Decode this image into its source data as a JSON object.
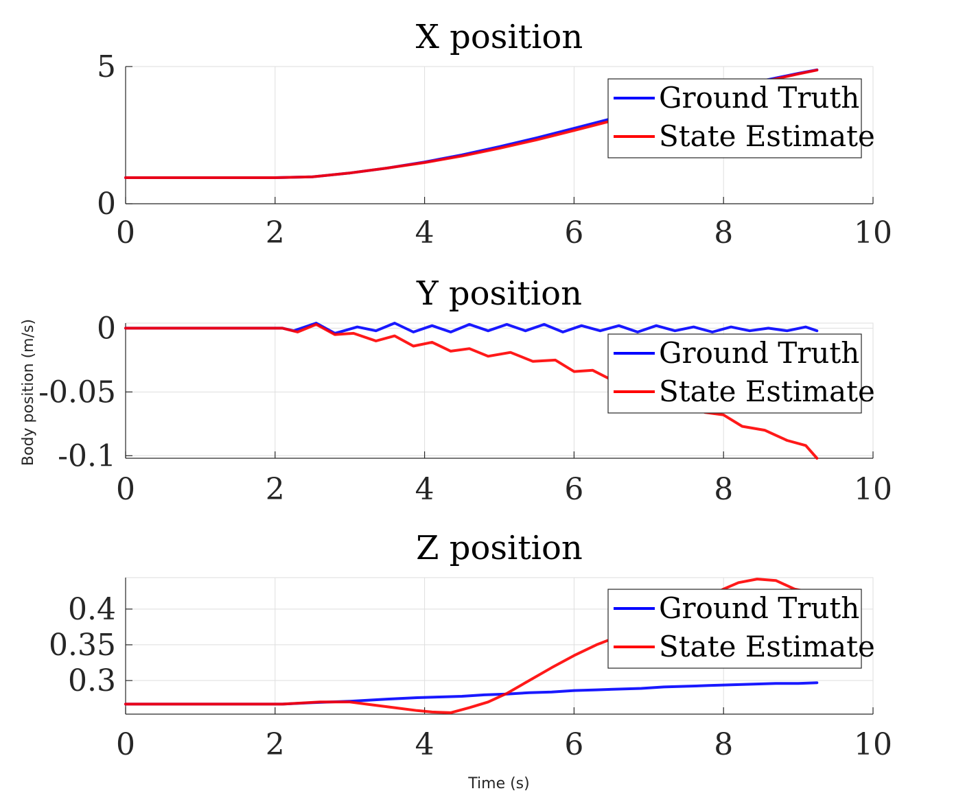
{
  "figure": {
    "xlabel": "Time (s)",
    "ylabel": "Body position (m/s)"
  },
  "legend": {
    "entries": [
      "Ground Truth",
      "State Estimate"
    ]
  },
  "colors": {
    "ground_truth": "#0000ff",
    "state_estimate": "#ff0000"
  },
  "chart_data": [
    {
      "type": "line",
      "title": "X position",
      "xlim": [
        0,
        10
      ],
      "ylim": [
        0,
        5
      ],
      "xticks": [
        0,
        2,
        4,
        6,
        8,
        10
      ],
      "yticks": [
        0,
        5
      ],
      "ytick_labels": [
        "0",
        "5"
      ],
      "grid": true,
      "legend_position": "top-right",
      "series": [
        {
          "name": "Ground Truth",
          "x": [
            0,
            1,
            2,
            2.5,
            3,
            3.5,
            4,
            4.5,
            5,
            5.5,
            6,
            6.5,
            7,
            7.5,
            8,
            8.5,
            9,
            9.25
          ],
          "y": [
            0.95,
            0.95,
            0.95,
            0.98,
            1.12,
            1.3,
            1.52,
            1.78,
            2.08,
            2.4,
            2.75,
            3.1,
            3.45,
            3.8,
            4.15,
            4.47,
            4.75,
            4.88
          ]
        },
        {
          "name": "State Estimate",
          "x": [
            0,
            1,
            2,
            2.5,
            3,
            3.5,
            4,
            4.5,
            5,
            5.5,
            6,
            6.5,
            7,
            7.5,
            8,
            8.5,
            9,
            9.25
          ],
          "y": [
            0.95,
            0.95,
            0.95,
            0.98,
            1.12,
            1.3,
            1.5,
            1.74,
            2.02,
            2.33,
            2.67,
            3.02,
            3.38,
            3.74,
            4.1,
            4.43,
            4.73,
            4.87
          ]
        }
      ]
    },
    {
      "type": "line",
      "title": "Y position",
      "xlim": [
        0,
        10
      ],
      "ylim": [
        -0.102,
        0.004
      ],
      "xticks": [
        0,
        2,
        4,
        6,
        8,
        10
      ],
      "yticks": [
        0,
        -0.05,
        -0.1
      ],
      "ytick_labels": [
        "0",
        "-0.05",
        "-0.1"
      ],
      "grid": true,
      "legend_position": "top-right",
      "series": [
        {
          "name": "Ground Truth",
          "x": [
            0,
            2.1,
            2.25,
            2.55,
            2.8,
            3.1,
            3.35,
            3.6,
            3.85,
            4.1,
            4.35,
            4.6,
            4.85,
            5.1,
            5.35,
            5.6,
            5.85,
            6.1,
            6.35,
            6.6,
            6.85,
            7.1,
            7.35,
            7.6,
            7.85,
            8.1,
            8.35,
            8.6,
            8.85,
            9.1,
            9.25
          ],
          "y": [
            0,
            0,
            -0.002,
            0.004,
            -0.004,
            0.001,
            -0.002,
            0.004,
            -0.003,
            0.002,
            -0.003,
            0.003,
            -0.002,
            0.003,
            -0.002,
            0.003,
            -0.003,
            0.002,
            -0.002,
            0.002,
            -0.003,
            0.002,
            -0.002,
            0.001,
            -0.003,
            0.001,
            -0.002,
            0,
            -0.002,
            0.001,
            -0.002
          ]
        },
        {
          "name": "State Estimate",
          "x": [
            0,
            2.1,
            2.3,
            2.55,
            2.8,
            3.05,
            3.35,
            3.6,
            3.85,
            4.1,
            4.35,
            4.6,
            4.85,
            5.15,
            5.45,
            5.75,
            6.0,
            6.25,
            6.55,
            6.85,
            7.15,
            7.45,
            7.75,
            8.0,
            8.25,
            8.55,
            8.85,
            9.1,
            9.25
          ],
          "y": [
            0,
            0,
            -0.003,
            0.003,
            -0.005,
            -0.004,
            -0.01,
            -0.006,
            -0.014,
            -0.011,
            -0.018,
            -0.016,
            -0.022,
            -0.019,
            -0.026,
            -0.025,
            -0.034,
            -0.033,
            -0.042,
            -0.044,
            -0.052,
            -0.056,
            -0.066,
            -0.068,
            -0.077,
            -0.08,
            -0.088,
            -0.092,
            -0.102
          ]
        }
      ]
    },
    {
      "type": "line",
      "title": "Z position",
      "xlim": [
        0,
        10
      ],
      "ylim": [
        0.253,
        0.444
      ],
      "xticks": [
        0,
        2,
        4,
        6,
        8,
        10
      ],
      "yticks": [
        0.3,
        0.35,
        0.4
      ],
      "ytick_labels": [
        "0.3",
        "0.35",
        "0.4"
      ],
      "grid": true,
      "legend_position": "top-right",
      "series": [
        {
          "name": "Ground Truth",
          "x": [
            0,
            2.1,
            2.5,
            3.0,
            3.5,
            3.9,
            4.2,
            4.5,
            4.8,
            5.1,
            5.4,
            5.7,
            6.0,
            6.3,
            6.6,
            6.9,
            7.2,
            7.5,
            7.8,
            8.1,
            8.4,
            8.7,
            9.0,
            9.25
          ],
          "y": [
            0.267,
            0.267,
            0.269,
            0.271,
            0.274,
            0.276,
            0.277,
            0.278,
            0.28,
            0.281,
            0.283,
            0.284,
            0.286,
            0.287,
            0.288,
            0.289,
            0.291,
            0.292,
            0.293,
            0.294,
            0.295,
            0.296,
            0.296,
            0.297
          ]
        },
        {
          "name": "State Estimate",
          "x": [
            0,
            2.1,
            2.6,
            3.0,
            3.3,
            3.6,
            3.9,
            4.1,
            4.35,
            4.6,
            4.85,
            5.1,
            5.4,
            5.7,
            6.0,
            6.3,
            6.6,
            6.9,
            7.2,
            7.5,
            7.8,
            8.0,
            8.2,
            8.45,
            8.7,
            8.95,
            9.05
          ],
          "y": [
            0.267,
            0.267,
            0.27,
            0.27,
            0.266,
            0.262,
            0.258,
            0.256,
            0.255,
            0.262,
            0.27,
            0.282,
            0.3,
            0.318,
            0.335,
            0.35,
            0.362,
            0.372,
            0.386,
            0.4,
            0.417,
            0.428,
            0.437,
            0.442,
            0.44,
            0.428,
            0.426
          ]
        }
      ]
    }
  ]
}
